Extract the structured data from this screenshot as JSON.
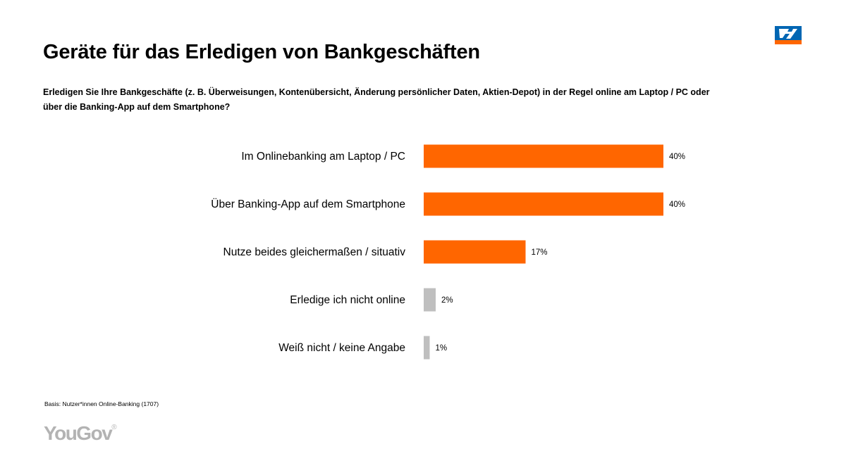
{
  "header": {
    "title": "Geräte für das Erledigen von Bankgeschäften",
    "question": "Erledigen Sie Ihre Bankgeschäfte (z. B. Überweisungen, Kontenübersicht, Änderung persönlicher Daten, Aktien-Depot) in der Regel online am Laptop / PC oder über die Banking-App auf dem Smartphone?"
  },
  "logo": {
    "icon": "volksbank-logo-icon",
    "colors": {
      "blue": "#0066b3",
      "orange": "#ff6600",
      "white": "#ffffff"
    }
  },
  "chart_data": {
    "type": "bar",
    "orientation": "horizontal",
    "categories": [
      "Im Onlinebanking am Laptop / PC",
      "Über Banking-App auf dem Smartphone",
      "Nutze beides gleichermaßen / situativ",
      "Erledige ich nicht online",
      "Weiß nicht / keine Angabe"
    ],
    "values": [
      40,
      40,
      17,
      2,
      1
    ],
    "value_labels": [
      "40%",
      "40%",
      "17%",
      "2%",
      "1%"
    ],
    "bar_colors": [
      "#ff6600",
      "#ff6600",
      "#ff6600",
      "#bfbfbf",
      "#bfbfbf"
    ],
    "value_axis_visible": false,
    "grid": false,
    "legend": "none"
  },
  "footer": {
    "basis": "Basis: Nutzer*innen Online-Banking (1707)",
    "brand": "YouGov",
    "brand_mark": "®"
  }
}
